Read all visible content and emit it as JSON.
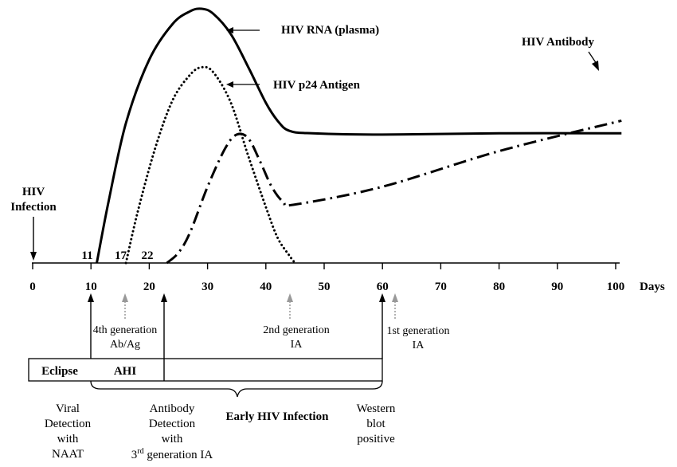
{
  "chart_data": {
    "type": "line",
    "title": "",
    "xlabel": "Days",
    "ylabel": "",
    "xlim": [
      0,
      100
    ],
    "x_ticks": [
      0,
      10,
      20,
      30,
      40,
      50,
      60,
      70,
      80,
      90,
      100
    ],
    "grid": false,
    "legend": "none",
    "series": [
      {
        "name": "HIV RNA (plasma)",
        "style": "solid",
        "points": [
          [
            11,
            0
          ],
          [
            13,
            24
          ],
          [
            16,
            55
          ],
          [
            20,
            80
          ],
          [
            24,
            94
          ],
          [
            27,
            99
          ],
          [
            29,
            100
          ],
          [
            31,
            98
          ],
          [
            34,
            90
          ],
          [
            37,
            77
          ],
          [
            40,
            63
          ],
          [
            42,
            56
          ],
          [
            44,
            52
          ],
          [
            48,
            51
          ],
          [
            60,
            50.5
          ],
          [
            80,
            51
          ],
          [
            101,
            51
          ]
        ]
      },
      {
        "name": "HIV p24 Antigen",
        "style": "dotted",
        "points": [
          [
            16,
            0
          ],
          [
            18,
            20
          ],
          [
            21,
            45
          ],
          [
            24,
            64
          ],
          [
            27,
            74
          ],
          [
            29,
            77
          ],
          [
            31,
            75
          ],
          [
            34,
            63
          ],
          [
            37,
            42
          ],
          [
            40,
            22
          ],
          [
            42,
            10
          ],
          [
            44,
            3
          ],
          [
            45,
            0
          ]
        ]
      },
      {
        "name": "HIV Antibody",
        "style": "dash-dot",
        "points": [
          [
            23,
            0
          ],
          [
            25,
            4
          ],
          [
            27,
            12
          ],
          [
            30,
            30
          ],
          [
            33,
            45
          ],
          [
            35,
            50.5
          ],
          [
            37,
            49
          ],
          [
            39,
            40
          ],
          [
            41,
            30
          ],
          [
            43,
            24
          ],
          [
            45,
            23
          ],
          [
            60,
            30
          ],
          [
            80,
            44
          ],
          [
            101,
            56
          ]
        ]
      }
    ],
    "markers": [
      {
        "day": 11,
        "label": "11"
      },
      {
        "day": 17,
        "label": "17"
      },
      {
        "day": 22,
        "label": "22"
      }
    ],
    "annotations": {
      "infection": [
        "HIV",
        "Infection"
      ],
      "rna": "HIV RNA (plasma)",
      "p24": "HIV p24 Antigen",
      "antibody": "HIV Antibody",
      "gen4": [
        "4th generation",
        "Ab/Ag"
      ],
      "gen2": [
        "2nd generation",
        "IA"
      ],
      "gen1": [
        "1st generation",
        "IA"
      ],
      "eclipse": "Eclipse",
      "ahi": "AHI",
      "early": "Early HIV Infection",
      "viral": [
        "Viral",
        "Detection",
        "with",
        "NAAT"
      ],
      "antibody_detection": [
        "Antibody",
        "Detection",
        "with"
      ],
      "third_gen": {
        "sup": "rd",
        "num": "3",
        "rest": " generation IA"
      },
      "western": [
        "Western",
        "blot",
        "positive"
      ]
    }
  }
}
